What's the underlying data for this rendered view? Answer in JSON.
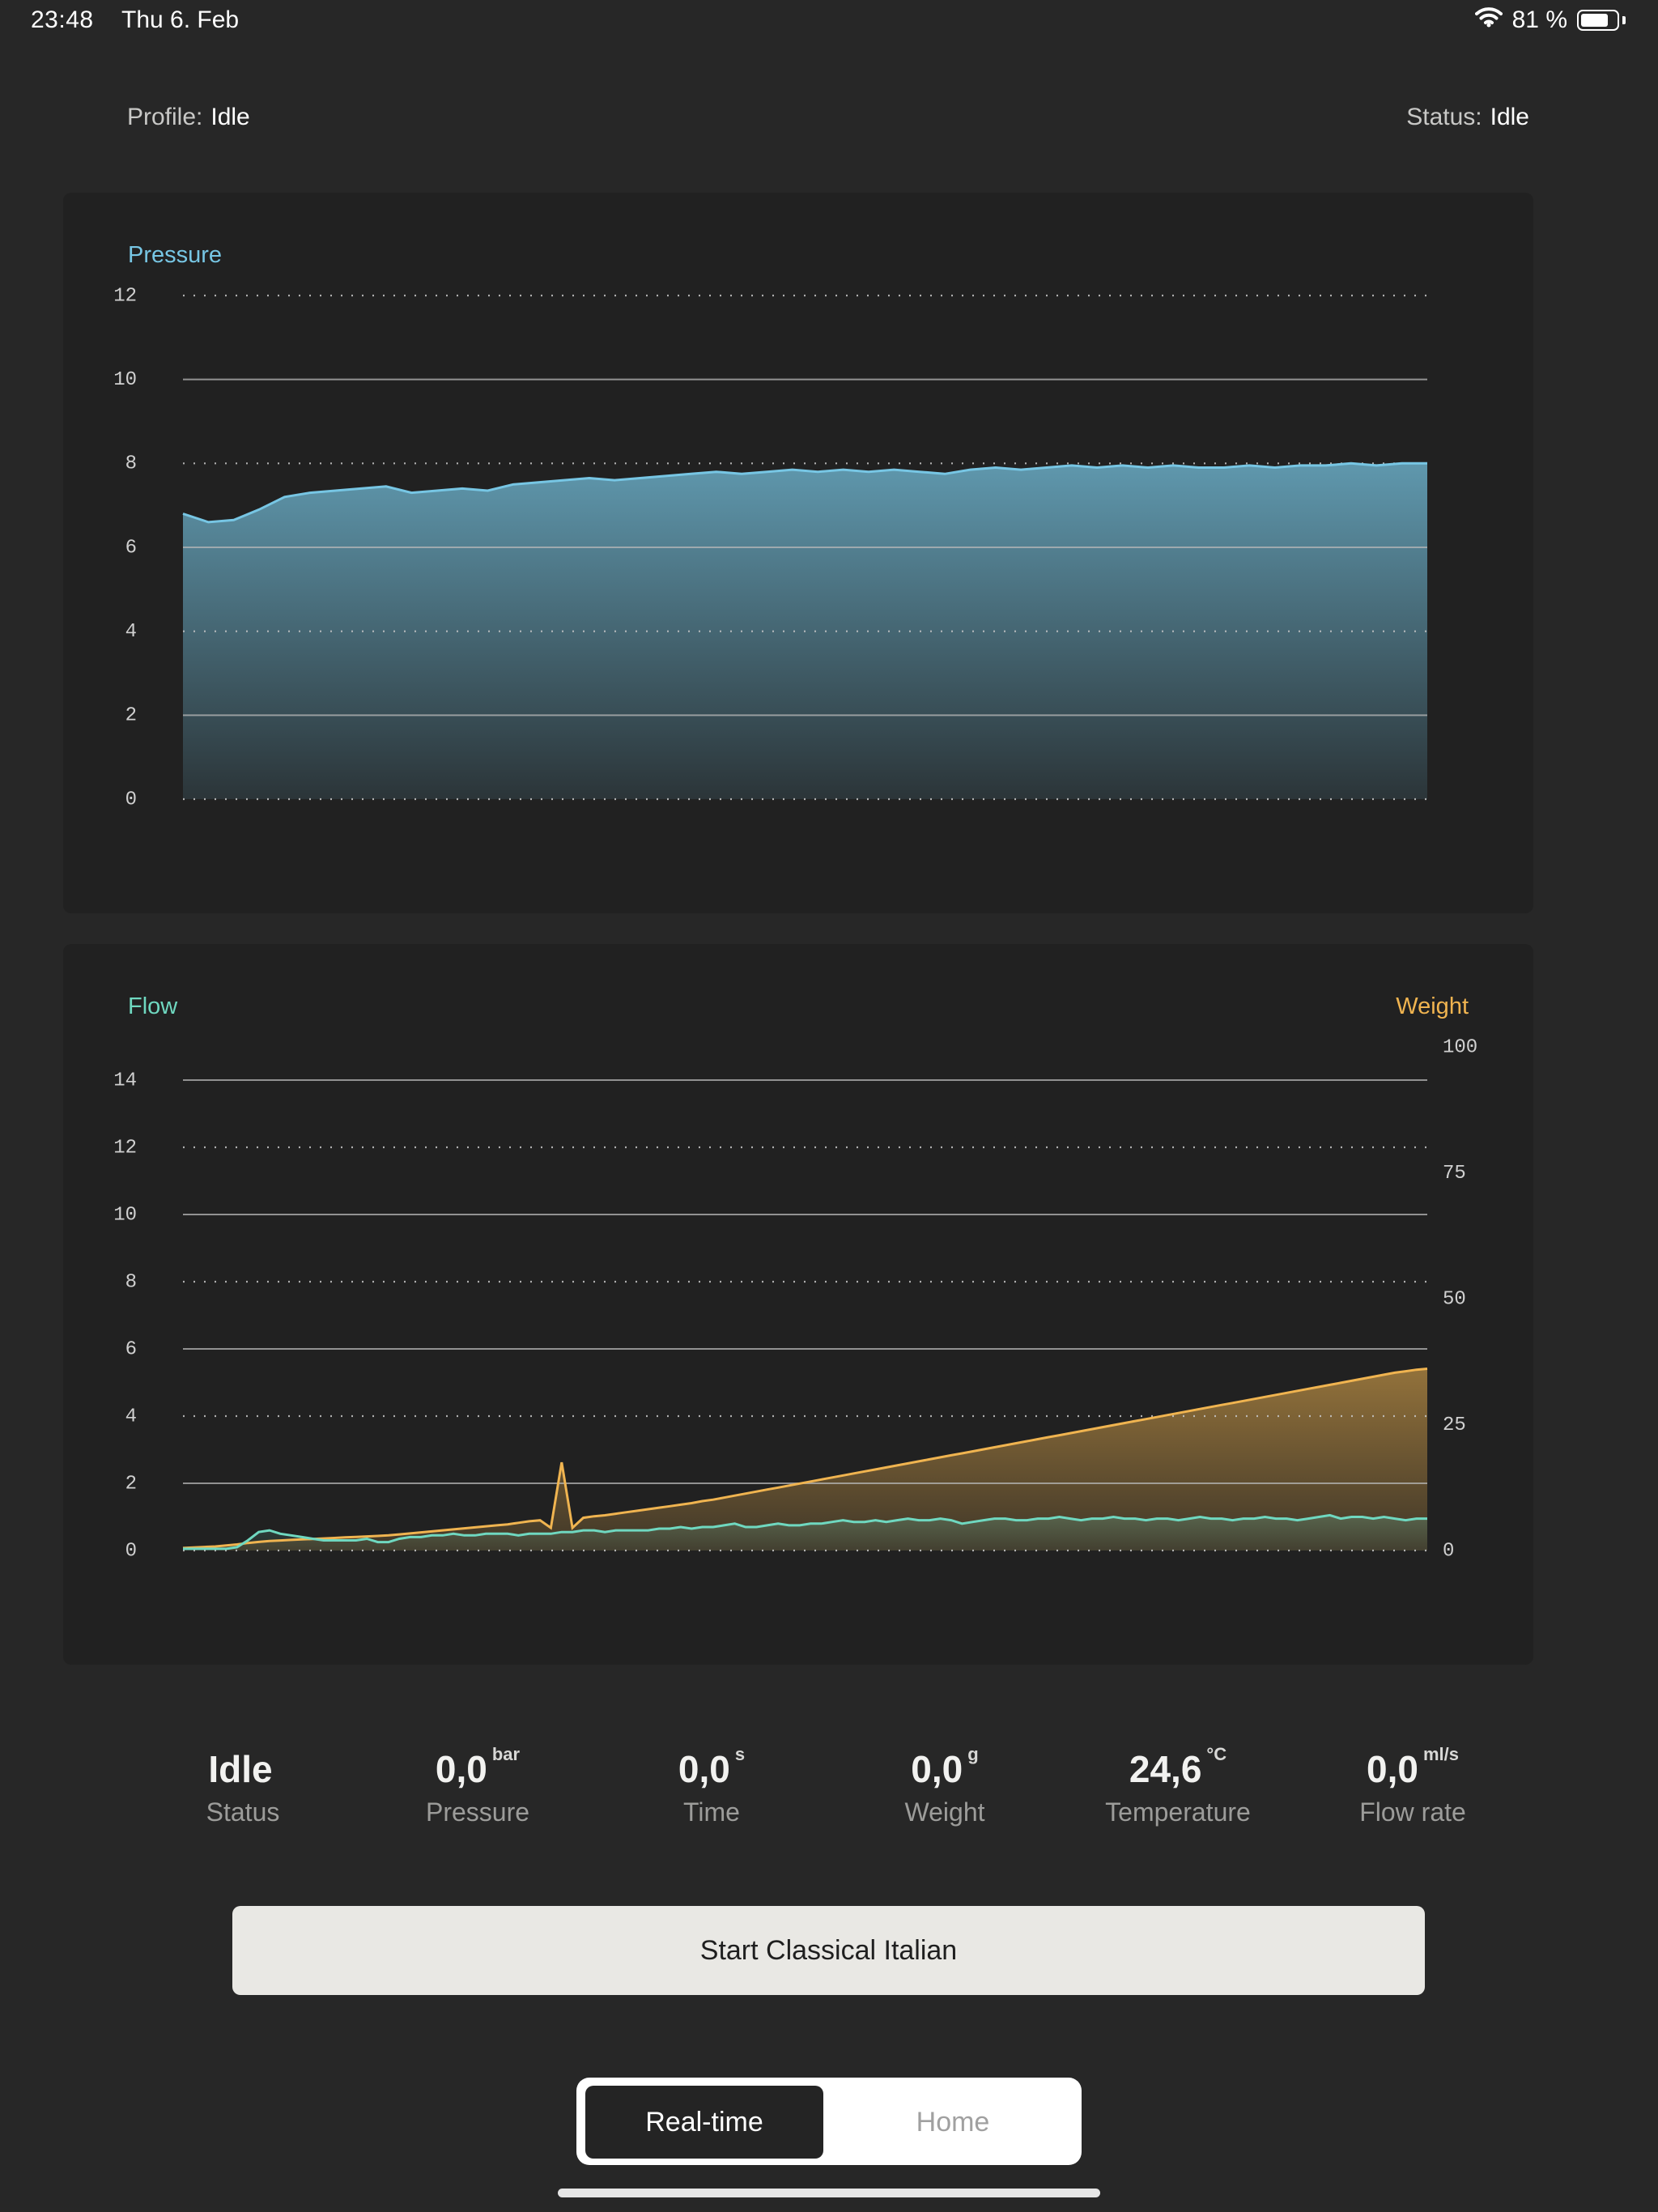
{
  "status_bar": {
    "time": "23:48",
    "date": "Thu 6. Feb",
    "battery": "81 %",
    "battery_level": 0.81
  },
  "header": {
    "profile_label": "Profile:",
    "profile_value": "Idle",
    "status_label": "Status:",
    "status_value": "Idle"
  },
  "colors": {
    "pressure": "#77c6e4",
    "flow": "#6fd8c0",
    "weight": "#f0b450",
    "background": "#272727",
    "panel": "#212121"
  },
  "pressure_chart": {
    "title": "Pressure",
    "chart_data": {
      "type": "area",
      "ylim": [
        0,
        12
      ],
      "yticks": [
        "0",
        "2",
        "4",
        "6",
        "8",
        "10",
        "12"
      ],
      "series": [
        {
          "name": "Pressure",
          "values": [
            6.8,
            6.6,
            6.65,
            6.9,
            7.2,
            7.3,
            7.35,
            7.4,
            7.45,
            7.3,
            7.35,
            7.4,
            7.35,
            7.5,
            7.55,
            7.6,
            7.65,
            7.6,
            7.65,
            7.7,
            7.75,
            7.8,
            7.75,
            7.8,
            7.85,
            7.8,
            7.85,
            7.8,
            7.85,
            7.8,
            7.75,
            7.85,
            7.9,
            7.85,
            7.9,
            7.95,
            7.9,
            7.95,
            7.9,
            7.95,
            7.9,
            7.9,
            7.95,
            7.9,
            7.95,
            7.95,
            8.0,
            7.95,
            8.0,
            8.0
          ]
        }
      ]
    }
  },
  "flow_chart": {
    "title_left": "Flow",
    "title_right": "Weight",
    "chart_data": {
      "type": "line",
      "ylim_left": [
        0,
        14
      ],
      "yticks_left": [
        "0",
        "2",
        "4",
        "6",
        "8",
        "10",
        "12",
        "14"
      ],
      "ylim_right": [
        0,
        100
      ],
      "yticks_right": [
        "0",
        "25",
        "50",
        "75",
        "100"
      ],
      "series": [
        {
          "name": "Flow",
          "axis": "left",
          "values": [
            0.05,
            0.05,
            0.05,
            0.05,
            0.05,
            0.1,
            0.3,
            0.55,
            0.6,
            0.5,
            0.45,
            0.4,
            0.35,
            0.3,
            0.3,
            0.3,
            0.3,
            0.35,
            0.25,
            0.25,
            0.35,
            0.4,
            0.4,
            0.45,
            0.45,
            0.5,
            0.45,
            0.45,
            0.5,
            0.5,
            0.5,
            0.45,
            0.5,
            0.5,
            0.5,
            0.55,
            0.55,
            0.6,
            0.6,
            0.55,
            0.6,
            0.6,
            0.6,
            0.6,
            0.65,
            0.65,
            0.7,
            0.65,
            0.7,
            0.7,
            0.75,
            0.8,
            0.7,
            0.7,
            0.75,
            0.8,
            0.75,
            0.75,
            0.8,
            0.8,
            0.85,
            0.9,
            0.85,
            0.85,
            0.9,
            0.85,
            0.9,
            0.95,
            0.9,
            0.9,
            0.95,
            0.9,
            0.8,
            0.85,
            0.9,
            0.95,
            0.95,
            0.9,
            0.9,
            0.95,
            0.95,
            1.0,
            0.95,
            0.9,
            0.95,
            0.95,
            1.0,
            0.95,
            0.95,
            0.9,
            0.95,
            0.95,
            0.9,
            0.95,
            1.0,
            0.95,
            0.95,
            0.9,
            0.95,
            0.95,
            1.0,
            0.95,
            0.95,
            0.9,
            0.95,
            1.0,
            1.05,
            0.95,
            1.0,
            1.0,
            0.95,
            1.0,
            0.95,
            0.9,
            0.95,
            0.95
          ]
        },
        {
          "name": "Weight",
          "axis": "right",
          "values": [
            0.5,
            0.6,
            0.7,
            0.8,
            1.0,
            1.2,
            1.5,
            1.7,
            1.9,
            2.0,
            2.1,
            2.2,
            2.3,
            2.4,
            2.5,
            2.6,
            2.7,
            2.8,
            2.9,
            3.0,
            3.2,
            3.4,
            3.6,
            3.8,
            4.0,
            4.2,
            4.4,
            4.6,
            4.8,
            5.0,
            5.2,
            5.5,
            5.8,
            6.0,
            4.5,
            17.5,
            4.5,
            6.5,
            6.8,
            7.0,
            7.3,
            7.6,
            7.9,
            8.2,
            8.5,
            8.8,
            9.1,
            9.4,
            9.8,
            10.1,
            10.5,
            10.9,
            11.3,
            11.7,
            12.1,
            12.5,
            12.9,
            13.3,
            13.7,
            14.1,
            14.5,
            14.9,
            15.3,
            15.7,
            16.1,
            16.5,
            16.9,
            17.3,
            17.7,
            18.1,
            18.5,
            18.9,
            19.3,
            19.7,
            20.1,
            20.5,
            20.9,
            21.3,
            21.7,
            22.1,
            22.5,
            22.9,
            23.3,
            23.7,
            24.1,
            24.5,
            24.9,
            25.3,
            25.7,
            26.1,
            26.5,
            26.9,
            27.3,
            27.7,
            28.1,
            28.5,
            28.9,
            29.3,
            29.7,
            30.1,
            30.5,
            30.9,
            31.3,
            31.7,
            32.1,
            32.5,
            32.9,
            33.3,
            33.7,
            34.1,
            34.5,
            34.9,
            35.3,
            35.6,
            35.9,
            36.1
          ]
        }
      ]
    }
  },
  "stats": [
    {
      "value": "Idle",
      "unit": "",
      "label": "Status"
    },
    {
      "value": "0,0",
      "unit": "bar",
      "label": "Pressure"
    },
    {
      "value": "0,0",
      "unit": "s",
      "label": "Time"
    },
    {
      "value": "0,0",
      "unit": "g",
      "label": "Weight"
    },
    {
      "value": "24,6",
      "unit": "°C",
      "label": "Temperature"
    },
    {
      "value": "0,0",
      "unit": "ml/s",
      "label": "Flow rate"
    }
  ],
  "start_button": {
    "label": "Start Classical Italian"
  },
  "tabs": [
    {
      "label": "Real-time",
      "active": true
    },
    {
      "label": "Home",
      "active": false
    }
  ]
}
